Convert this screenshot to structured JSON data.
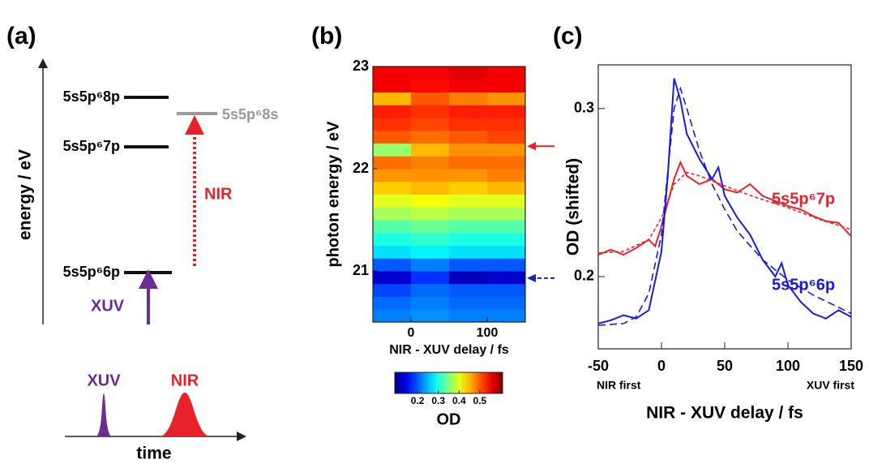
{
  "diagram": {
    "label": "(a)",
    "axis_label": "energy / eV",
    "levels": [
      "5s5p⁶8p",
      "5s5p⁶7p",
      "5s5p⁶6p",
      "5s5p⁶8s"
    ],
    "nir": "NIR",
    "xuv": "XUV",
    "pulses": [
      "XUV",
      "NIR"
    ],
    "time_label": "time"
  },
  "chart_data": [
    {
      "type": "heatmap",
      "label": "(b)",
      "xlabel": "NIR - XUV delay / fs",
      "ylabel": "photon energy / eV",
      "x_bins": [
        -50,
        0,
        50,
        100,
        150
      ],
      "y_bins": [
        20.5,
        20.625,
        20.75,
        20.875,
        21,
        21.125,
        21.25,
        21.375,
        21.5,
        21.625,
        21.75,
        21.875,
        22,
        22.125,
        22.25,
        22.375,
        22.5,
        22.625,
        22.75,
        22.875,
        23
      ],
      "z": [
        [
          0.22,
          0.23,
          0.22,
          0.22
        ],
        [
          0.21,
          0.22,
          0.21,
          0.21
        ],
        [
          0.19,
          0.21,
          0.2,
          0.2
        ],
        [
          0.13,
          0.18,
          0.12,
          0.13
        ],
        [
          0.2,
          0.22,
          0.2,
          0.2
        ],
        [
          0.27,
          0.28,
          0.27,
          0.27
        ],
        [
          0.3,
          0.31,
          0.3,
          0.3
        ],
        [
          0.33,
          0.34,
          0.33,
          0.33
        ],
        [
          0.37,
          0.38,
          0.37,
          0.37
        ],
        [
          0.4,
          0.41,
          0.4,
          0.4
        ],
        [
          0.44,
          0.45,
          0.44,
          0.45
        ],
        [
          0.47,
          0.47,
          0.47,
          0.48
        ],
        [
          0.49,
          0.48,
          0.49,
          0.49
        ],
        [
          0.36,
          0.45,
          0.47,
          0.47
        ],
        [
          0.5,
          0.49,
          0.5,
          0.51
        ],
        [
          0.52,
          0.51,
          0.52,
          0.52
        ],
        [
          0.53,
          0.52,
          0.53,
          0.53
        ],
        [
          0.45,
          0.5,
          0.48,
          0.47
        ],
        [
          0.55,
          0.54,
          0.55,
          0.55
        ],
        [
          0.55,
          0.55,
          0.56,
          0.55
        ]
      ],
      "xlim": [
        -50,
        150
      ],
      "ylim": [
        20.5,
        23
      ],
      "xticks": [
        0,
        100
      ],
      "yticks": [
        21,
        22,
        23
      ],
      "colormap": "jet",
      "colorbar": {
        "label": "OD",
        "clim": [
          0.09,
          0.61
        ],
        "ticks": [
          0.2,
          0.3,
          0.4,
          0.5
        ]
      },
      "markers": [
        {
          "y": 22.22,
          "color": "#e8222a",
          "style": "solid"
        },
        {
          "y": 20.93,
          "color": "#1a1adb",
          "style": "dashed"
        }
      ]
    },
    {
      "type": "line",
      "label": "(c)",
      "xlabel": "NIR - XUV delay / fs",
      "ylabel": "OD (shifted)",
      "xlim": [
        -50,
        150
      ],
      "ylim": [
        0.157,
        0.326
      ],
      "xticks": [
        -50,
        0,
        50,
        100,
        150
      ],
      "yticks": [
        0.2,
        0.3
      ],
      "annotations": [
        "NIR first",
        "XUV first"
      ],
      "series": [
        {
          "name": "5s5p⁶7p",
          "color": "#e8222a",
          "style": "solid",
          "x": [
            -50,
            -40,
            -30,
            -20,
            -10,
            -5,
            0,
            10,
            15,
            20,
            30,
            40,
            50,
            60,
            70,
            80,
            90,
            100,
            110,
            120,
            130,
            140,
            150
          ],
          "values": [
            0.213,
            0.216,
            0.213,
            0.217,
            0.222,
            0.218,
            0.23,
            0.258,
            0.268,
            0.26,
            0.255,
            0.258,
            0.252,
            0.25,
            0.255,
            0.248,
            0.245,
            0.242,
            0.24,
            0.236,
            0.233,
            0.232,
            0.224
          ]
        },
        {
          "color": "#e8222a",
          "style": "dashed",
          "x": [
            -50,
            -30,
            -10,
            0,
            10,
            20,
            30,
            50,
            75,
            100,
            125,
            150
          ],
          "values": [
            0.214,
            0.215,
            0.222,
            0.235,
            0.255,
            0.262,
            0.26,
            0.254,
            0.247,
            0.241,
            0.234,
            0.228
          ]
        },
        {
          "name": "5s5p⁶6p",
          "color": "#1a1adb",
          "style": "solid",
          "x": [
            -50,
            -40,
            -30,
            -20,
            -10,
            0,
            5,
            10,
            15,
            20,
            30,
            40,
            45,
            50,
            60,
            70,
            80,
            90,
            95,
            100,
            110,
            120,
            130,
            140,
            150
          ],
          "values": [
            0.172,
            0.174,
            0.177,
            0.175,
            0.18,
            0.215,
            0.26,
            0.318,
            0.305,
            0.285,
            0.27,
            0.258,
            0.265,
            0.248,
            0.235,
            0.225,
            0.21,
            0.2,
            0.208,
            0.195,
            0.185,
            0.178,
            0.175,
            0.18,
            0.176
          ]
        },
        {
          "color": "#1a1adb",
          "style": "dashed",
          "x": [
            -50,
            -30,
            -20,
            -10,
            0,
            10,
            15,
            20,
            30,
            40,
            50,
            60,
            80,
            100,
            120,
            150
          ],
          "values": [
            0.171,
            0.172,
            0.176,
            0.19,
            0.225,
            0.3,
            0.312,
            0.3,
            0.275,
            0.255,
            0.24,
            0.227,
            0.21,
            0.198,
            0.189,
            0.178
          ]
        }
      ]
    }
  ]
}
